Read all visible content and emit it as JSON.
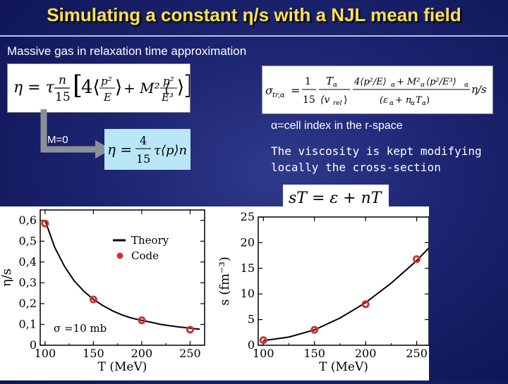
{
  "slide": {
    "title": "Simulating a constant η/s with a NJL mean field",
    "subtitle": "Massive gas in relaxation time approximation",
    "arrow_label": "M=0",
    "alpha_note": "α=cell index in the r-space",
    "viscosity_note_line1": "The viscosity is kept modifying",
    "viscosity_note_line2": "locally the cross-section"
  },
  "formulas": {
    "eta_massive": "η = τ n/15 ⟨p²/E⟩ + M² ⟨p²/E³⟩",
    "eta_massless": "η = 4/15 τ ⟨p⟩ n",
    "sigma_tr": "σtr,α = 1/15 Tα/⟨vrel⟩ · 4⟨p²/E⟩α + Mα²⟨p²/E³⟩α / (εα + nαTα) η/s",
    "entropy": "sT = ε + nT"
  },
  "chart_data": [
    {
      "type": "line",
      "xlabel": "T (MeV)",
      "ylabel": "η/s",
      "xlim": [
        95,
        265
      ],
      "ylim": [
        0,
        0.65
      ],
      "xticks": [
        100,
        150,
        200,
        250
      ],
      "yticks": [
        0,
        0.1,
        0.2,
        0.3,
        0.4,
        0.5,
        0.6
      ],
      "ytick_labels": [
        "0",
        "0,1",
        "0,2",
        "0,3",
        "0,4",
        "0,5",
        "0,6"
      ],
      "annotation": "σ =10 mb",
      "legend_position": "top-center",
      "series": [
        {
          "name": "Theory",
          "style": "line",
          "color": "#000000",
          "x": [
            100,
            110,
            120,
            130,
            140,
            150,
            160,
            170,
            180,
            190,
            200,
            210,
            220,
            230,
            240,
            250,
            260
          ],
          "y": [
            0.6,
            0.47,
            0.38,
            0.31,
            0.26,
            0.22,
            0.19,
            0.165,
            0.145,
            0.13,
            0.12,
            0.11,
            0.1,
            0.093,
            0.087,
            0.082,
            0.077
          ]
        },
        {
          "name": "Code",
          "style": "markers",
          "color": "#d33030",
          "x": [
            100,
            150,
            200,
            250
          ],
          "y": [
            0.585,
            0.22,
            0.12,
            0.075
          ]
        }
      ]
    },
    {
      "type": "line",
      "xlabel": "T (MeV)",
      "ylabel": "s (fm⁻³)",
      "xlim": [
        95,
        262
      ],
      "ylim": [
        0,
        25
      ],
      "xticks": [
        100,
        150,
        200,
        250
      ],
      "yticks": [
        0,
        5,
        10,
        15,
        20,
        25
      ],
      "series": [
        {
          "style": "line",
          "color": "#000000",
          "x": [
            100,
            125,
            150,
            175,
            200,
            225,
            250,
            262
          ],
          "y": [
            0.9,
            1.6,
            3.0,
            5.3,
            8.3,
            12.1,
            16.5,
            19.0
          ]
        },
        {
          "style": "markers",
          "color": "#d33030",
          "x": [
            100,
            150,
            200,
            250
          ],
          "y": [
            1.0,
            3.0,
            8.0,
            16.8
          ]
        }
      ]
    }
  ]
}
